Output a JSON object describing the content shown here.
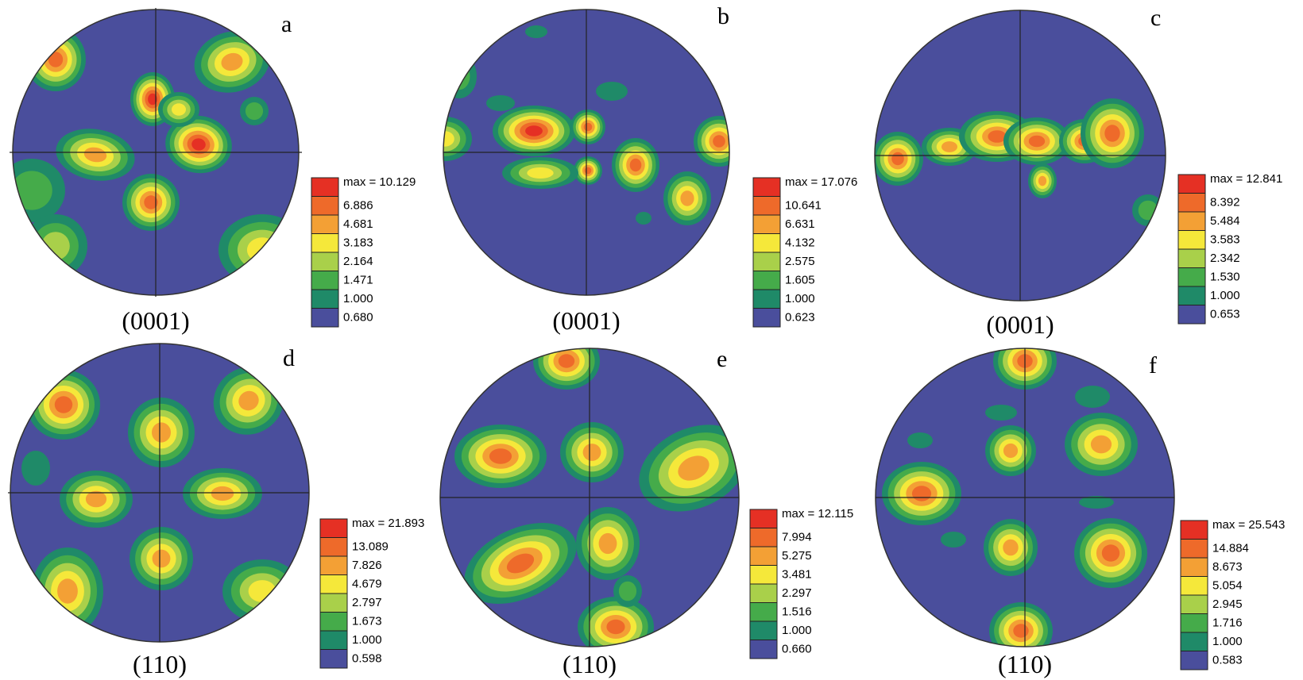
{
  "palette": [
    "#4a4e9c",
    "#1f8a68",
    "#45ab4a",
    "#a9d04a",
    "#f5e83a",
    "#f3a035",
    "#ee6a2a",
    "#e53024"
  ],
  "panels": [
    {
      "letter": "a",
      "plane": "(0001)",
      "max_label": "max = 10.129",
      "levels": [
        "6.886",
        "4.681",
        "3.183",
        "2.164",
        "1.471",
        "1.000",
        "0.680"
      ]
    },
    {
      "letter": "b",
      "plane": "(0001)",
      "max_label": "max = 17.076",
      "levels": [
        "10.641",
        "6.631",
        "4.132",
        "2.575",
        "1.605",
        "1.000",
        "0.623"
      ]
    },
    {
      "letter": "c",
      "plane": "(0001)",
      "max_label": "max = 12.841",
      "levels": [
        "8.392",
        "5.484",
        "3.583",
        "2.342",
        "1.530",
        "1.000",
        "0.653"
      ]
    },
    {
      "letter": "d",
      "plane": "(110)",
      "max_label": "max = 21.893",
      "levels": [
        "13.089",
        "7.826",
        "4.679",
        "2.797",
        "1.673",
        "1.000",
        "0.598"
      ]
    },
    {
      "letter": "e",
      "plane": "(110)",
      "max_label": "max = 12.115",
      "levels": [
        "7.994",
        "5.275",
        "3.481",
        "2.297",
        "1.516",
        "1.000",
        "0.660"
      ]
    },
    {
      "letter": "f",
      "plane": "(110)",
      "max_label": "max = 25.543",
      "levels": [
        "14.884",
        "8.673",
        "5.054",
        "2.945",
        "1.716",
        "1.000",
        "0.583"
      ]
    }
  ]
}
